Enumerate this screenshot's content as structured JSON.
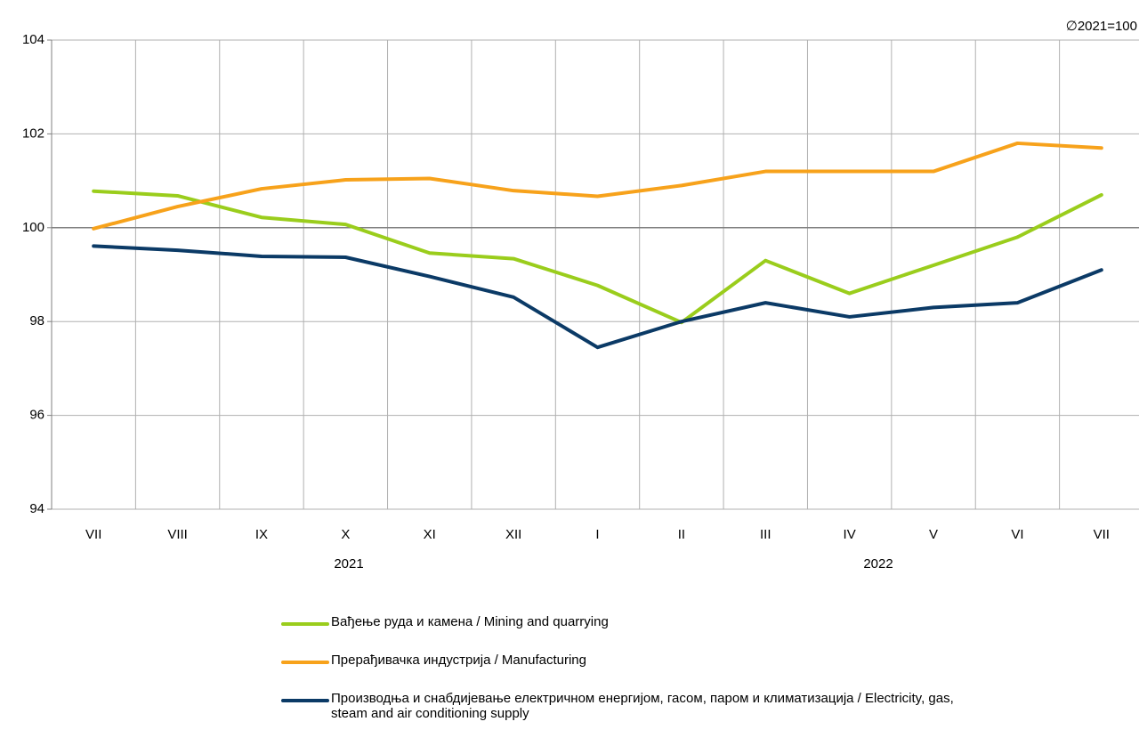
{
  "chart_data": {
    "type": "line",
    "note": "∅2021=100",
    "categories": [
      "VII",
      "VIII",
      "IX",
      "X",
      "XI",
      "XII",
      "I",
      "II",
      "III",
      "IV",
      "V",
      "VI",
      "VII"
    ],
    "groups": [
      "2021",
      "2022"
    ],
    "ylim": [
      94,
      104
    ],
    "yticks": [
      94,
      96,
      98,
      100,
      102,
      104
    ],
    "grid": true,
    "series": [
      {
        "name": "Вађење руда и камена / Mining and quarrying",
        "color": "#9acd1c",
        "values": [
          100.78,
          100.68,
          100.22,
          100.07,
          99.46,
          99.34,
          98.77,
          97.98,
          99.3,
          98.6,
          99.2,
          99.8,
          100.7
        ]
      },
      {
        "name": "Прерађивачка индустрија / Manufacturing",
        "color": "#f7a21b",
        "values": [
          99.98,
          100.45,
          100.83,
          101.02,
          101.05,
          100.79,
          100.67,
          100.9,
          101.2,
          101.2,
          101.2,
          101.8,
          101.7
        ]
      },
      {
        "name": "Производња и снабдијевање електричном енергијом, гасом, паром и климатизација / Electricity, gas, steam and air conditioning supply",
        "color": "#0b3a66",
        "values": [
          99.61,
          99.52,
          99.39,
          99.37,
          98.96,
          98.52,
          97.45,
          98.0,
          98.4,
          98.1,
          98.3,
          98.4,
          99.1
        ]
      }
    ]
  }
}
